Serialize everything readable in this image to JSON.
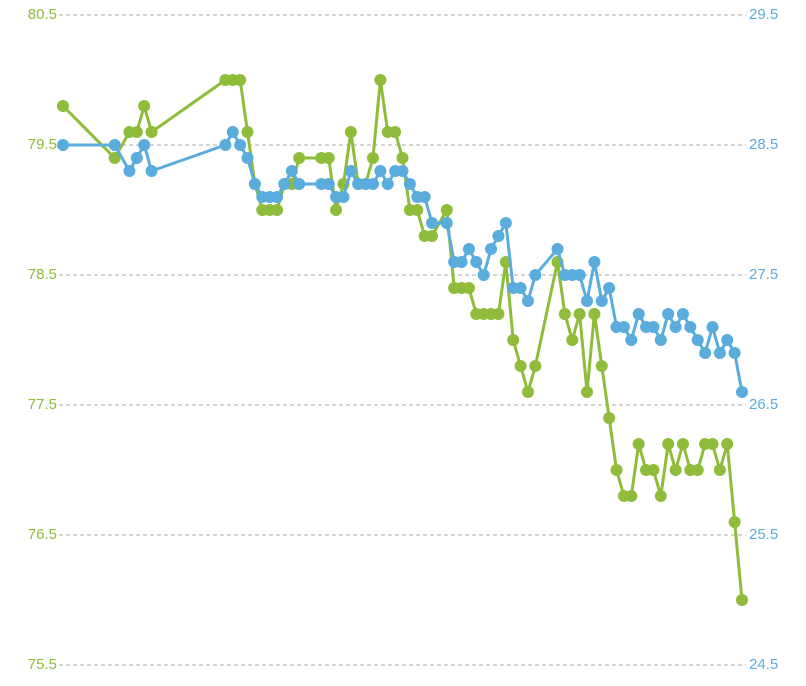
{
  "chart_data": {
    "type": "line",
    "x": [
      0,
      7,
      9,
      10,
      11,
      12,
      22,
      23,
      24,
      25,
      26,
      27,
      28,
      29,
      30,
      31,
      32,
      35,
      36,
      37,
      38,
      39,
      40,
      41,
      42,
      43,
      44,
      45,
      46,
      47,
      48,
      49,
      50,
      52,
      53,
      54,
      55,
      56,
      57,
      58,
      59,
      60,
      61,
      62,
      63,
      64,
      67,
      68,
      69,
      70,
      71,
      72,
      73,
      74,
      75,
      76,
      77,
      78,
      79,
      80,
      81,
      82,
      83,
      84,
      85,
      86,
      87,
      88,
      89,
      90,
      91,
      92
    ],
    "xlim": [
      0,
      92
    ],
    "series": [
      {
        "color": "#8fbc3a",
        "axis": "y",
        "values": [
          79.8,
          79.4,
          79.6,
          79.6,
          79.8,
          79.6,
          80.0,
          80.0,
          80.0,
          79.6,
          79.2,
          79.0,
          79.0,
          79.0,
          79.2,
          79.2,
          79.4,
          79.4,
          79.4,
          79.0,
          79.2,
          79.6,
          79.2,
          79.2,
          79.4,
          80.0,
          79.6,
          79.6,
          79.4,
          79.0,
          79.0,
          78.8,
          78.8,
          79.0,
          78.4,
          78.4,
          78.4,
          78.2,
          78.2,
          78.2,
          78.2,
          78.6,
          78.0,
          77.8,
          77.6,
          77.8,
          78.6,
          78.2,
          78.0,
          78.2,
          77.6,
          78.2,
          77.8,
          77.4,
          77.0,
          76.8,
          76.8,
          77.2,
          77.0,
          77.0,
          76.8,
          77.2,
          77.0,
          77.2,
          77.0,
          77.0,
          77.2,
          77.2,
          77.0,
          77.2,
          76.6,
          76.0
        ]
      },
      {
        "color": "#5aacdc",
        "axis": "y2",
        "values": [
          28.5,
          28.5,
          28.3,
          28.4,
          28.5,
          28.3,
          28.5,
          28.6,
          28.5,
          28.4,
          28.2,
          28.1,
          28.1,
          28.1,
          28.2,
          28.3,
          28.2,
          28.2,
          28.2,
          28.1,
          28.1,
          28.3,
          28.2,
          28.2,
          28.2,
          28.3,
          28.2,
          28.3,
          28.3,
          28.2,
          28.1,
          28.1,
          27.9,
          27.9,
          27.6,
          27.6,
          27.7,
          27.6,
          27.5,
          27.7,
          27.8,
          27.9,
          27.4,
          27.4,
          27.3,
          27.5,
          27.7,
          27.5,
          27.5,
          27.5,
          27.3,
          27.6,
          27.3,
          27.4,
          27.1,
          27.1,
          27.0,
          27.2,
          27.1,
          27.1,
          27.0,
          27.2,
          27.1,
          27.2,
          27.1,
          27.0,
          26.9,
          27.1,
          26.9,
          27.0,
          26.9,
          26.6
        ]
      }
    ],
    "ylim": [
      75.5,
      80.5
    ],
    "yticks": [
      75.5,
      76.5,
      77.5,
      78.5,
      79.5,
      80.5
    ],
    "y2lim": [
      24.5,
      29.5
    ],
    "y2ticks": [
      24.5,
      25.5,
      26.5,
      27.5,
      28.5,
      29.5
    ],
    "ytick_color": "#8fbc3a",
    "y2tick_color": "#5aacdc",
    "grid": true
  }
}
